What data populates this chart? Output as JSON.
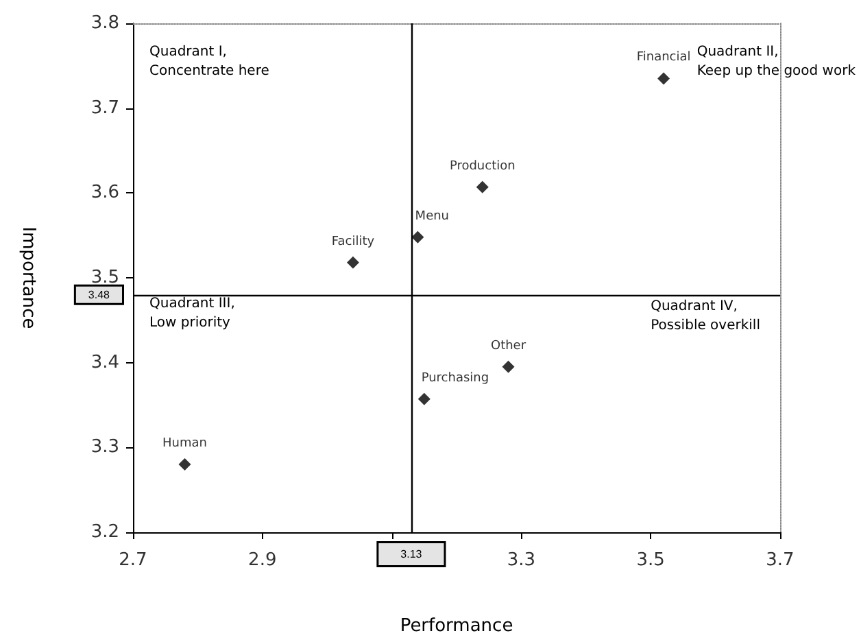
{
  "chart_data": {
    "type": "scatter",
    "xlabel": "Performance",
    "ylabel": "Importance",
    "xlim": [
      2.7,
      3.7
    ],
    "xticks": [
      2.7,
      2.9,
      {
        "value": 3.1,
        "label": null
      },
      3.3,
      3.5,
      3.7
    ],
    "ylim": [
      3.2,
      3.8
    ],
    "yticks": [
      3.2,
      3.3,
      3.4,
      3.5,
      3.6,
      3.7,
      3.8
    ],
    "grid": false,
    "legend": false,
    "marker": "diamond",
    "series": [
      {
        "name": "Financial",
        "color": "#000000",
        "x": [
          3.52
        ],
        "values": [
          3.735
        ]
      },
      {
        "name": "Production",
        "color": "#000000",
        "x": [
          3.24
        ],
        "values": [
          3.607
        ]
      },
      {
        "name": "Menu",
        "color": "#000000",
        "x": [
          3.14
        ],
        "values": [
          3.548
        ]
      },
      {
        "name": "Facility",
        "color": "#000000",
        "x": [
          3.04
        ],
        "values": [
          3.518
        ]
      },
      {
        "name": "Other",
        "color": "#000000",
        "x": [
          3.28
        ],
        "values": [
          3.395
        ]
      },
      {
        "name": "Purchasing",
        "color": "#000000",
        "x": [
          3.15
        ],
        "values": [
          3.357
        ]
      },
      {
        "name": "Human",
        "color": "#000000",
        "x": [
          2.78
        ],
        "values": [
          3.28
        ]
      }
    ],
    "ref_lines": [
      {
        "axis": "x",
        "value": 3.13,
        "label": "3.13",
        "color": "#000000"
      },
      {
        "axis": "y",
        "value": 3.48,
        "label": "3.48",
        "color": "#000000"
      }
    ],
    "annotations": [
      "Quadrant I,\nConcentrate here",
      "Quadrant II,\nKeep up the good work",
      "Quadrant III,\nLow priority",
      "Quadrant IV,\nPossible overkill"
    ]
  }
}
